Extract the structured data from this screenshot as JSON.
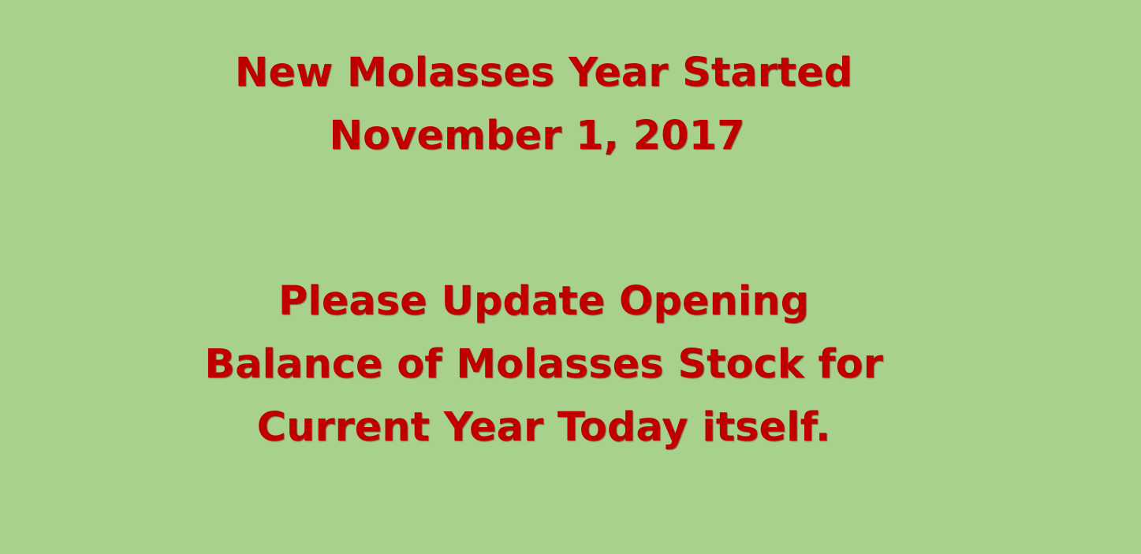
{
  "background_color": "#a9d18e",
  "text_color": "#c00000",
  "announcement": {
    "title_line1": "New Molasses Year Started",
    "title_line2": "November 1, 2017",
    "message_line1": "Please Update Opening",
    "message_line2": "Balance of Molasses Stock for",
    "message_line3": "Current Year Today itself."
  }
}
